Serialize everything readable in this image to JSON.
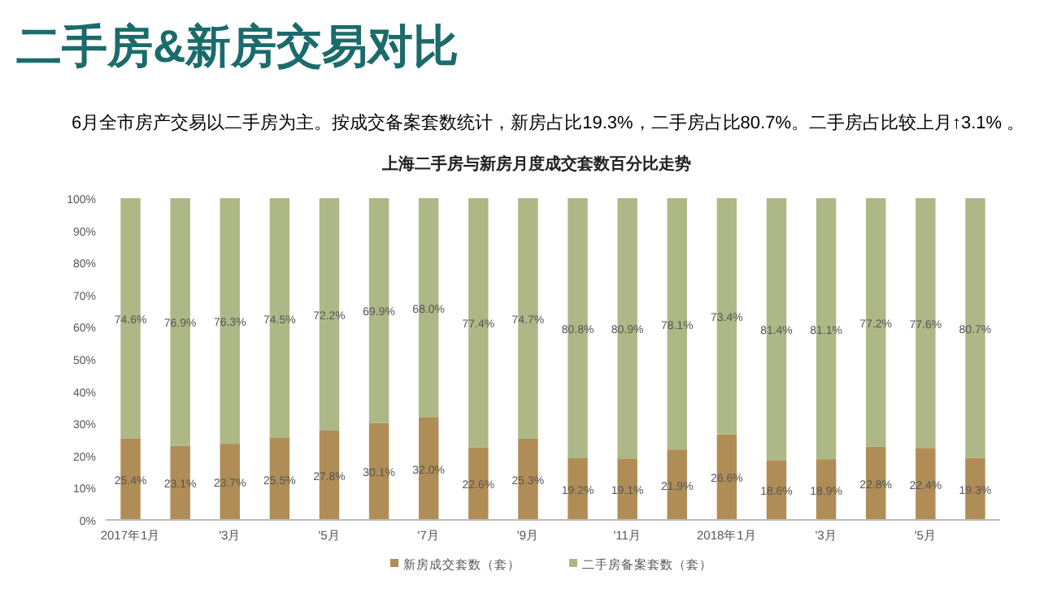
{
  "chart_data": {
    "type": "bar",
    "stacked": true,
    "title": "上海二手房与新房月度成交套数百分比走势",
    "annotations": [
      "二手房&新房交易对比",
      "6月全市房产交易以二手房为主。按成交备案套数统计，新房占比19.3%，二手房占比80.7%。二手房占比较上月↑3.1% 。"
    ],
    "categories": [
      "2017年1月",
      null,
      "'3月",
      null,
      "'5月",
      null,
      "'7月",
      null,
      "'9月",
      null,
      "'11月",
      null,
      "2018年1月",
      null,
      "'3月",
      null,
      "'5月",
      null
    ],
    "series": [
      {
        "name": "新房成交套数（套）",
        "color": "#b08d57",
        "values": [
          25.4,
          23.1,
          23.7,
          25.5,
          27.8,
          30.1,
          32.0,
          22.6,
          25.3,
          19.2,
          19.1,
          21.9,
          26.6,
          18.6,
          18.9,
          22.8,
          22.4,
          19.3
        ],
        "value_labels": [
          "25.4%",
          "23.1%",
          "23.7%",
          "25.5%",
          "27.8%",
          "30.1%",
          "32.0%",
          "22.6%",
          "25.3%",
          "19.2%",
          "19.1%",
          "21.9%",
          "26.6%",
          "18.6%",
          "18.9%",
          "22.8%",
          "22.4%",
          "19.3%"
        ]
      },
      {
        "name": "二手房备案套数（套）",
        "color": "#adb886",
        "values": [
          74.6,
          76.9,
          76.3,
          74.5,
          72.2,
          69.9,
          68.0,
          77.4,
          74.7,
          80.8,
          80.9,
          78.1,
          73.4,
          81.4,
          81.1,
          77.2,
          77.6,
          80.7
        ],
        "value_labels": [
          "74.6%",
          "76.9%",
          "76.3%",
          "74.5%",
          "72.2%",
          "69.9%",
          "68.0%",
          "77.4%",
          "74.7%",
          "80.8%",
          "80.9%",
          "78.1%",
          "73.4%",
          "81.4%",
          "81.1%",
          "77.2%",
          "77.6%",
          "80.7%"
        ]
      }
    ],
    "ylim": [
      0,
      100
    ],
    "yticks": [
      {
        "value": 0,
        "label": "0%"
      },
      {
        "value": 10,
        "label": "10%"
      },
      {
        "value": 20,
        "label": "20%"
      },
      {
        "value": 30,
        "label": "30%"
      },
      {
        "value": 40,
        "label": "40%"
      },
      {
        "value": 50,
        "label": "50%"
      },
      {
        "value": 60,
        "label": "60%"
      },
      {
        "value": 70,
        "label": "70%"
      },
      {
        "value": 80,
        "label": "80%"
      },
      {
        "value": 90,
        "label": "90%"
      },
      {
        "value": 100,
        "label": "100%"
      }
    ],
    "grid": false,
    "legend": "bottom"
  }
}
